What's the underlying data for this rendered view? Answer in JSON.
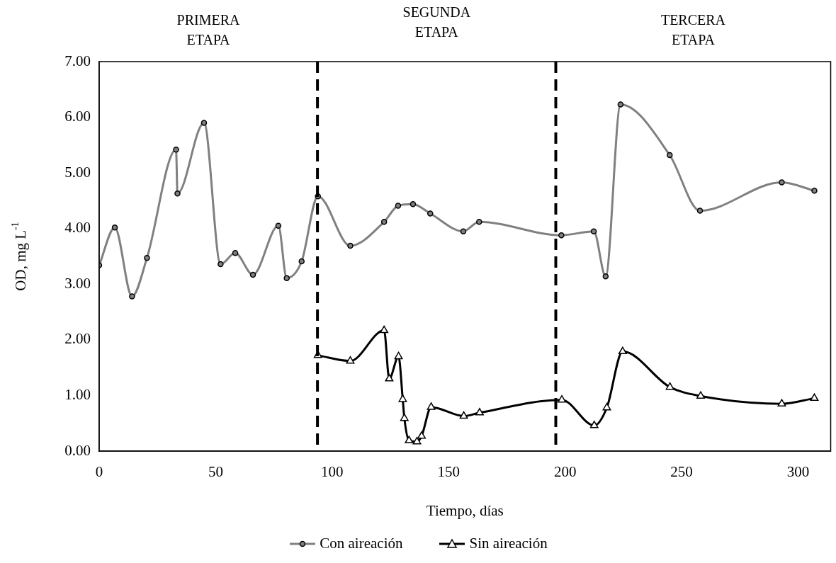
{
  "chart_data": {
    "type": "line",
    "xlabel": "Tiempo, días",
    "ylabel": "OD, mg L$^{-1}$",
    "xlim": [
      0,
      314
    ],
    "xticks": [
      0,
      50,
      100,
      150,
      200,
      250,
      300
    ],
    "ylim": [
      0,
      7
    ],
    "yticks": [
      {
        "value": 0,
        "label": "0.00"
      },
      {
        "value": 1,
        "label": "1.00"
      },
      {
        "value": 2,
        "label": "2.00"
      },
      {
        "value": 3,
        "label": "3.00"
      },
      {
        "value": 4,
        "label": "4.00"
      },
      {
        "value": 5,
        "label": "5.00"
      },
      {
        "value": 6,
        "label": "6.00"
      },
      {
        "value": 7,
        "label": "7.00"
      }
    ],
    "grid": false,
    "legend": "bottom",
    "annotations": [
      "PRIMERA ETAPA",
      "SEGUNDA ETAPA",
      "TERCERA ETAPA"
    ],
    "ref_lines": [
      {
        "axis": "x",
        "value": 93.7,
        "color": "#000000",
        "line_style": "dashed"
      },
      {
        "axis": "x",
        "value": 196,
        "color": "#000000",
        "line_style": "dashed"
      }
    ],
    "series": [
      {
        "name": "Con aireación",
        "color": "#808080",
        "marker": "circle",
        "x": [
          0,
          6.7,
          14.1,
          20.5,
          33,
          33.6,
          45,
          52.1,
          58.4,
          66,
          76.9,
          80.5,
          86.9,
          93.9,
          107.8,
          122.3,
          128.3,
          134.7,
          142.1,
          156.3,
          163.1,
          198.4,
          212.3,
          217.4,
          223.8,
          244.9,
          257.9,
          293,
          307
        ],
        "values": [
          3.34,
          4.02,
          2.78,
          3.47,
          5.42,
          4.63,
          5.9,
          3.36,
          3.56,
          3.17,
          4.05,
          3.11,
          3.41,
          4.58,
          3.69,
          4.12,
          4.41,
          4.44,
          4.27,
          3.95,
          4.12,
          3.88,
          3.95,
          3.14,
          6.23,
          5.32,
          4.32,
          4.83,
          4.68
        ]
      },
      {
        "name": "Sin aireación",
        "color": "#000000",
        "marker": "triangle",
        "x": [
          93.9,
          107.8,
          122.3,
          124.5,
          128.5,
          130.3,
          131,
          133,
          136.4,
          138.4,
          142.5,
          156.5,
          163.3,
          198.6,
          212.5,
          217.9,
          224.7,
          245,
          258.2,
          293,
          307
        ],
        "values": [
          1.72,
          1.62,
          2.17,
          1.3,
          1.7,
          0.93,
          0.59,
          0.19,
          0.17,
          0.27,
          0.79,
          0.63,
          0.69,
          0.92,
          0.46,
          0.78,
          1.79,
          1.15,
          0.99,
          0.85,
          0.95
        ]
      }
    ]
  }
}
